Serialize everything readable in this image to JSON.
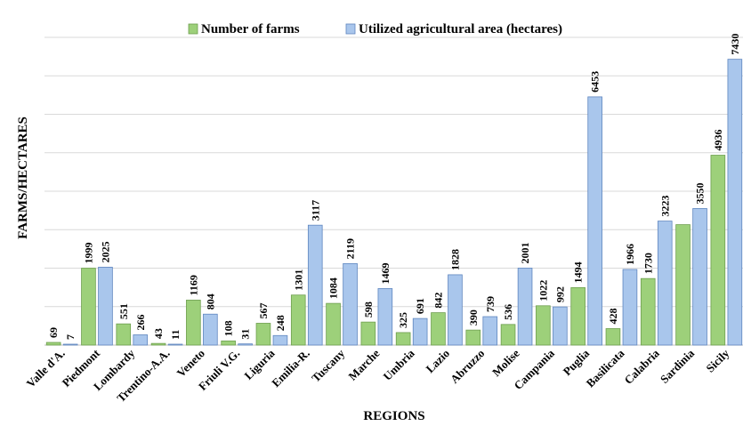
{
  "chart_data": {
    "type": "bar",
    "xlabel": "REGIONS",
    "ylabel": "FARMS/HECTARES",
    "ylim": [
      0,
      8000
    ],
    "grid": true,
    "legend_position": "top",
    "categories": [
      "Valle d'A.",
      "Piedmont",
      "Lombardy",
      "Trentino-A.A.",
      "Veneto",
      "Friuli V.G.",
      "Liguria",
      "Emilia-R.",
      "Tuscany",
      "Marche",
      "Umbria",
      "Lazio",
      "Abruzzo",
      "Molise",
      "Campania",
      "Puglia",
      "Basilicata",
      "Calabria",
      "Sardinia",
      "Sicily"
    ],
    "series": [
      {
        "name": "Number of farms",
        "color": "#9dd07a",
        "values": [
          69,
          1999,
          551,
          43,
          1169,
          108,
          567,
          1301,
          1084,
          598,
          325,
          842,
          390,
          536,
          1022,
          1494,
          428,
          1730,
          3131,
          4936
        ]
      },
      {
        "name": "Utilized agricultural area (hectares)",
        "color": "#a9c6ec",
        "values": [
          7,
          2025,
          266,
          11,
          804,
          31,
          248,
          3117,
          2119,
          1469,
          691,
          1828,
          739,
          2001,
          992,
          6453,
          1966,
          3223,
          3550,
          7430
        ]
      }
    ],
    "hide_labels": [
      {
        "series": 0,
        "index": 18
      }
    ]
  }
}
